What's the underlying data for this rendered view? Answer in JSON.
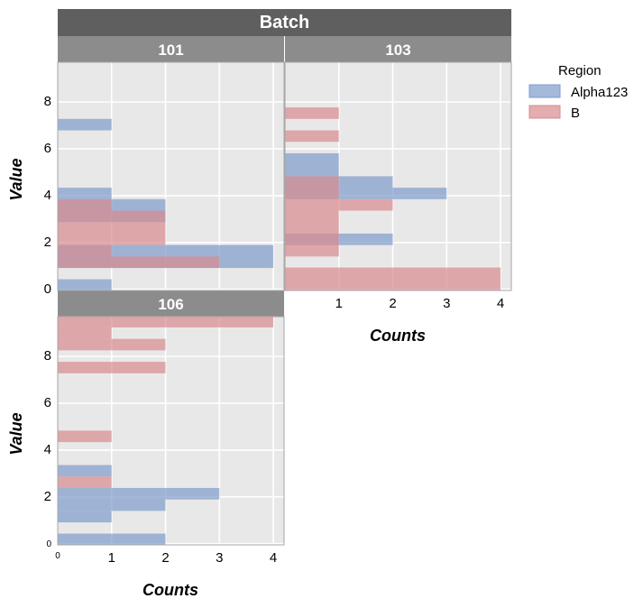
{
  "chart_data": {
    "type": "bar",
    "orientation": "horizontal",
    "facet_title": "Batch",
    "xlabel": "Counts",
    "ylabel": "Value",
    "xlim": [
      0,
      4.2
    ],
    "ylim": [
      -0.05,
      9.7
    ],
    "x_ticks": [
      "1",
      "2",
      "3",
      "4"
    ],
    "x_zero_label": "0",
    "y_ticks": [
      "0",
      "2",
      "4",
      "6",
      "8"
    ],
    "legend": {
      "title": "Region",
      "placement": "right",
      "items": [
        {
          "name": "Alpha123",
          "color": "#7f9bcc"
        },
        {
          "name": "B",
          "color": "#d98a8e"
        }
      ]
    },
    "grid": true,
    "panels": [
      {
        "label": "101",
        "series": [
          {
            "name": "Alpha123",
            "bars": [
              {
                "y0": -0.05,
                "y1": 0.43,
                "value": 1
              },
              {
                "y0": 0.91,
                "y1": 1.89,
                "value": 4
              },
              {
                "y0": 2.87,
                "y1": 3.85,
                "value": 2
              },
              {
                "y0": 3.85,
                "y1": 4.34,
                "value": 1
              },
              {
                "y0": 6.79,
                "y1": 7.28,
                "value": 1
              }
            ]
          },
          {
            "name": "B",
            "bars": [
              {
                "y0": 0.91,
                "y1": 1.4,
                "value": 3
              },
              {
                "y0": 1.4,
                "y1": 1.89,
                "value": 1
              },
              {
                "y0": 1.89,
                "y1": 2.87,
                "value": 2
              },
              {
                "y0": 2.87,
                "y1": 3.36,
                "value": 2
              },
              {
                "y0": 3.36,
                "y1": 3.85,
                "value": 1
              }
            ]
          }
        ]
      },
      {
        "label": "103",
        "series": [
          {
            "name": "Alpha123",
            "bars": [
              {
                "y0": 1.89,
                "y1": 2.38,
                "value": 2
              },
              {
                "y0": 3.85,
                "y1": 4.34,
                "value": 3
              },
              {
                "y0": 4.34,
                "y1": 4.83,
                "value": 2
              },
              {
                "y0": 4.83,
                "y1": 5.81,
                "value": 1
              }
            ]
          },
          {
            "name": "B",
            "bars": [
              {
                "y0": -0.05,
                "y1": 0.93,
                "value": 4
              },
              {
                "y0": 1.4,
                "y1": 2.38,
                "value": 1
              },
              {
                "y0": 2.38,
                "y1": 3.36,
                "value": 1
              },
              {
                "y0": 3.36,
                "y1": 3.85,
                "value": 2
              },
              {
                "y0": 3.85,
                "y1": 4.83,
                "value": 1
              },
              {
                "y0": 6.3,
                "y1": 6.79,
                "value": 1
              },
              {
                "y0": 7.28,
                "y1": 7.77,
                "value": 1
              }
            ]
          }
        ]
      },
      {
        "label": "106",
        "series": [
          {
            "name": "Alpha123",
            "bars": [
              {
                "y0": -0.05,
                "y1": 0.43,
                "value": 2
              },
              {
                "y0": 0.91,
                "y1": 1.4,
                "value": 1
              },
              {
                "y0": 1.4,
                "y1": 1.89,
                "value": 2
              },
              {
                "y0": 1.89,
                "y1": 2.38,
                "value": 3
              },
              {
                "y0": 2.87,
                "y1": 3.36,
                "value": 1
              }
            ]
          },
          {
            "name": "B",
            "bars": [
              {
                "y0": 2.38,
                "y1": 2.87,
                "value": 1
              },
              {
                "y0": 4.34,
                "y1": 4.83,
                "value": 1
              },
              {
                "y0": 7.28,
                "y1": 7.77,
                "value": 2
              },
              {
                "y0": 8.26,
                "y1": 8.75,
                "value": 2
              },
              {
                "y0": 8.75,
                "y1": 9.24,
                "value": 1
              },
              {
                "y0": 9.24,
                "y1": 9.73,
                "value": 4
              }
            ]
          }
        ]
      }
    ]
  }
}
